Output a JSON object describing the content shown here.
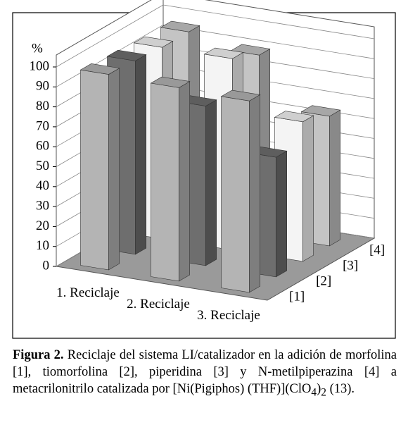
{
  "chart_data": {
    "type": "bar3d",
    "y_label": "%",
    "categories": [
      "1. Reciclaje",
      "2. Reciclaje",
      "3. Reciclaje"
    ],
    "series": [
      {
        "name": "[1]",
        "color": "#b4b4b4",
        "values": [
          98,
          97,
          96
        ]
      },
      {
        "name": "[2]",
        "color": "#6e6e6e",
        "values": [
          97,
          80,
          60
        ]
      },
      {
        "name": "[3]",
        "color": "#f4f4f4",
        "values": [
          96,
          96,
          70
        ]
      },
      {
        "name": "[4]",
        "color": "#c4c4c4",
        "values": [
          96,
          90,
          65
        ]
      }
    ],
    "ylim": [
      0,
      100
    ],
    "yticks": [
      0,
      10,
      20,
      30,
      40,
      50,
      60,
      70,
      80,
      90,
      100
    ],
    "grid": true
  },
  "caption": {
    "label": "Figura 2.",
    "text": " Reciclaje del sistema LI/catalizador en la adición de morfolina [1], tiomorfolina [2], piperidina [3] y N-metilpiperazina [4] a metacrilonitrilo catalizada por [Ni(Pigiphos) (THF)](ClO",
    "sub1": "4",
    "text2": ")",
    "sub2": "2",
    "text3": " (13)."
  }
}
